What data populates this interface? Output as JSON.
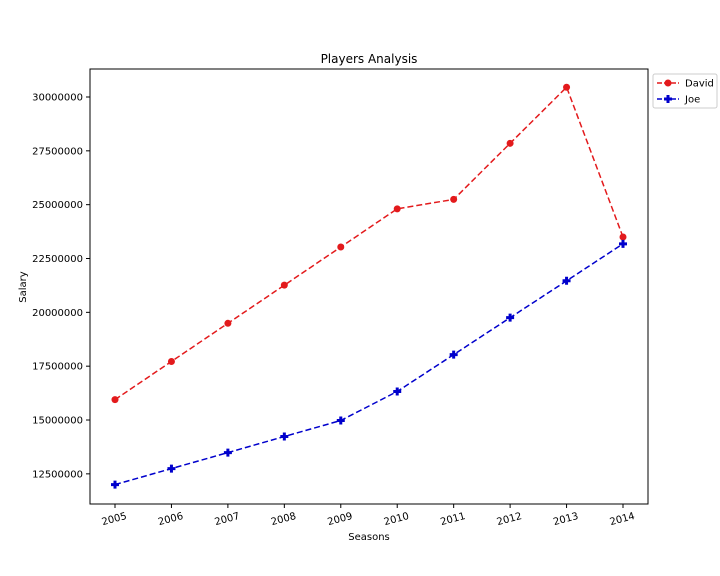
{
  "chart_data": {
    "type": "line",
    "title": "Players Analysis",
    "xlabel": "Seasons",
    "ylabel": "Salary",
    "categories": [
      "2005",
      "2006",
      "2007",
      "2008",
      "2009",
      "2010",
      "2011",
      "2012",
      "2013",
      "2014"
    ],
    "ylim": [
      11100000,
      31300000
    ],
    "yticks": [
      12500000,
      15000000,
      17500000,
      20000000,
      22500000,
      25000000,
      27500000,
      30000000
    ],
    "ytick_labels": [
      "12500000",
      "15000000",
      "17500000",
      "20000000",
      "22500000",
      "25000000",
      "27500000",
      "30000000"
    ],
    "grid": false,
    "legend_position": "outside-top-right",
    "series": [
      {
        "name": "David",
        "color": "#e31a1c",
        "marker": "circle",
        "line_style": "dashed",
        "values": [
          15946875,
          17718750,
          19490625,
          21262500,
          23034375,
          24806250,
          25244493,
          27849149,
          30453805,
          23500000
        ]
      },
      {
        "name": "Joe",
        "color": "#0000cc",
        "marker": "plus",
        "line_style": "dashed",
        "values": [
          12000000,
          12744189,
          13488377,
          14232567,
          14976754,
          16324500,
          18038573,
          19752645,
          21466718,
          23180790
        ]
      }
    ]
  }
}
